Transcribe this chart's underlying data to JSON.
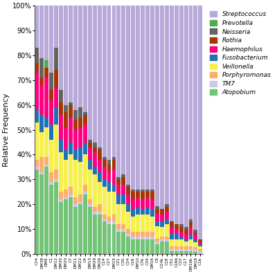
{
  "categories": [
    "C24",
    "DM38",
    "DM9",
    "C1",
    "DM12",
    "DM30",
    "DM20",
    "C7",
    "DM11",
    "DM22",
    "C4",
    "DM13",
    "DM29",
    "DM26",
    "C14",
    "C27",
    "DM15",
    "C21",
    "C30",
    "C54",
    "C16",
    "DM10",
    "C7b",
    "C34",
    "DM16",
    "C8",
    "C24b",
    "C18",
    "C51",
    "C16b",
    "C22",
    "C17",
    "DM16b",
    "DM18",
    "C1b"
  ],
  "taxa_order": [
    "Atopobium",
    "TM7",
    "Porphyromonas",
    "Veillonella",
    "Fusobacterium",
    "Haemophilus",
    "Rothia",
    "Neisseria",
    "Prevotella",
    "Streptococcus"
  ],
  "taxa_legend": [
    "Streptococcus",
    "Prevotella",
    "Neisseria",
    "Rothia",
    "Haemophilus",
    "Fusobacterium",
    "Veillonella",
    "Porphyromonas",
    "TM7",
    "Atopobium"
  ],
  "colors": {
    "Streptococcus": "#b8a9d9",
    "Prevotella": "#4daf4a",
    "Neisseria": "#636363",
    "Rothia": "#a63603",
    "Haemophilus": "#ff007f",
    "Fusobacterium": "#2171b5",
    "Veillonella": "#f7f04a",
    "Porphyromonas": "#fdae6b",
    "TM7": "#cbc9e2",
    "Atopobium": "#74c476"
  },
  "data": {
    "Streptococcus": [
      0.17,
      0.21,
      0.22,
      0.27,
      0.17,
      0.34,
      0.4,
      0.39,
      0.42,
      0.41,
      0.43,
      0.54,
      0.55,
      0.57,
      0.61,
      0.62,
      0.61,
      0.69,
      0.68,
      0.72,
      0.74,
      0.74,
      0.74,
      0.74,
      0.74,
      0.8,
      0.82,
      0.8,
      0.87,
      0.88,
      0.88,
      0.9,
      0.87,
      0.93,
      0.95
    ],
    "Prevotella": [
      0.0,
      0.0,
      0.03,
      0.0,
      0.0,
      0.0,
      0.0,
      0.0,
      0.0,
      0.0,
      0.0,
      0.0,
      0.0,
      0.0,
      0.0,
      0.0,
      0.0,
      0.0,
      0.0,
      0.0,
      0.0,
      0.0,
      0.0,
      0.0,
      0.0,
      0.0,
      0.0,
      0.0,
      0.0,
      0.0,
      0.0,
      0.0,
      0.0,
      0.0,
      0.0
    ],
    "Neisseria": [
      0.06,
      0.08,
      0.0,
      0.07,
      0.09,
      0.05,
      0.03,
      0.01,
      0.04,
      0.04,
      0.01,
      0.01,
      0.02,
      0.01,
      0.01,
      0.02,
      0.01,
      0.01,
      0.01,
      0.01,
      0.01,
      0.01,
      0.01,
      0.01,
      0.01,
      0.01,
      0.0,
      0.01,
      0.0,
      0.0,
      0.01,
      0.01,
      0.01,
      0.01,
      0.0
    ],
    "Rothia": [
      0.04,
      0.03,
      0.04,
      0.04,
      0.07,
      0.05,
      0.06,
      0.05,
      0.04,
      0.04,
      0.04,
      0.02,
      0.02,
      0.04,
      0.03,
      0.03,
      0.04,
      0.02,
      0.03,
      0.03,
      0.03,
      0.02,
      0.03,
      0.02,
      0.03,
      0.02,
      0.02,
      0.02,
      0.02,
      0.02,
      0.02,
      0.02,
      0.02,
      0.01,
      0.01
    ],
    "Haemophilus": [
      0.15,
      0.12,
      0.16,
      0.1,
      0.08,
      0.1,
      0.09,
      0.1,
      0.08,
      0.08,
      0.07,
      0.05,
      0.06,
      0.05,
      0.05,
      0.04,
      0.06,
      0.04,
      0.04,
      0.04,
      0.04,
      0.04,
      0.04,
      0.04,
      0.04,
      0.03,
      0.03,
      0.03,
      0.03,
      0.02,
      0.02,
      0.02,
      0.03,
      0.02,
      0.01
    ],
    "Fusobacterium": [
      0.05,
      0.07,
      0.04,
      0.06,
      0.07,
      0.05,
      0.04,
      0.05,
      0.04,
      0.06,
      0.05,
      0.04,
      0.03,
      0.04,
      0.03,
      0.04,
      0.03,
      0.04,
      0.04,
      0.03,
      0.03,
      0.03,
      0.02,
      0.03,
      0.03,
      0.02,
      0.02,
      0.02,
      0.02,
      0.02,
      0.01,
      0.01,
      0.02,
      0.01,
      0.01
    ],
    "Veillonella": [
      0.15,
      0.1,
      0.12,
      0.13,
      0.18,
      0.16,
      0.12,
      0.13,
      0.15,
      0.13,
      0.12,
      0.12,
      0.13,
      0.09,
      0.11,
      0.1,
      0.09,
      0.08,
      0.08,
      0.07,
      0.06,
      0.07,
      0.07,
      0.07,
      0.06,
      0.05,
      0.04,
      0.05,
      0.03,
      0.03,
      0.03,
      0.02,
      0.03,
      0.02,
      0.01
    ],
    "Porphyromonas": [
      0.03,
      0.06,
      0.03,
      0.04,
      0.04,
      0.03,
      0.03,
      0.03,
      0.03,
      0.03,
      0.03,
      0.02,
      0.02,
      0.03,
      0.02,
      0.02,
      0.03,
      0.02,
      0.02,
      0.02,
      0.02,
      0.02,
      0.02,
      0.02,
      0.02,
      0.01,
      0.01,
      0.01,
      0.01,
      0.01,
      0.01,
      0.01,
      0.01,
      0.01,
      0.01
    ],
    "TM7": [
      0.01,
      0.01,
      0.01,
      0.01,
      0.01,
      0.01,
      0.01,
      0.01,
      0.01,
      0.01,
      0.01,
      0.01,
      0.01,
      0.01,
      0.01,
      0.01,
      0.01,
      0.01,
      0.01,
      0.01,
      0.01,
      0.01,
      0.01,
      0.01,
      0.01,
      0.01,
      0.01,
      0.01,
      0.01,
      0.01,
      0.01,
      0.01,
      0.01,
      0.01,
      0.01
    ],
    "Atopobium": [
      0.34,
      0.32,
      0.35,
      0.28,
      0.29,
      0.21,
      0.22,
      0.23,
      0.19,
      0.2,
      0.24,
      0.19,
      0.16,
      0.16,
      0.13,
      0.12,
      0.12,
      0.09,
      0.09,
      0.07,
      0.06,
      0.06,
      0.06,
      0.06,
      0.06,
      0.04,
      0.05,
      0.05,
      0.01,
      0.01,
      0.01,
      0.01,
      0.01,
      0.01,
      0.0
    ]
  },
  "ylabel": "Relative Frequency",
  "ytick_labels": [
    "0%",
    "10%",
    "20%",
    "30%",
    "40%",
    "50%",
    "60%",
    "70%",
    "80%",
    "90%",
    "100%"
  ],
  "bg_color": "#f5f5ff",
  "grid_color": "#cccccc"
}
